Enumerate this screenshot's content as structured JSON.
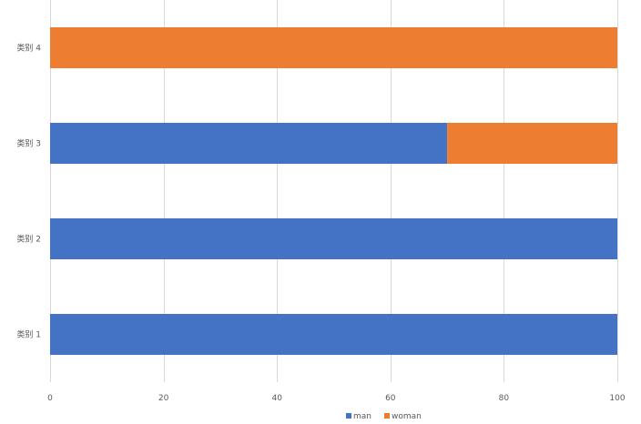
{
  "chart_data": {
    "type": "bar",
    "orientation": "horizontal",
    "stacked": true,
    "categories": [
      "类别 1",
      "类别 2",
      "类别 3",
      "类别 4"
    ],
    "series": [
      {
        "name": "man",
        "values": [
          100,
          100,
          70,
          0
        ],
        "color": "#4472C4"
      },
      {
        "name": "woman",
        "values": [
          0,
          0,
          30,
          100
        ],
        "color": "#ED7D31"
      }
    ],
    "xlim": [
      0,
      100
    ],
    "xticks": [
      "0",
      "20",
      "40",
      "60",
      "80",
      "100"
    ],
    "grid": true,
    "legend_position": "bottom",
    "title": "",
    "xlabel": "",
    "ylabel": ""
  }
}
